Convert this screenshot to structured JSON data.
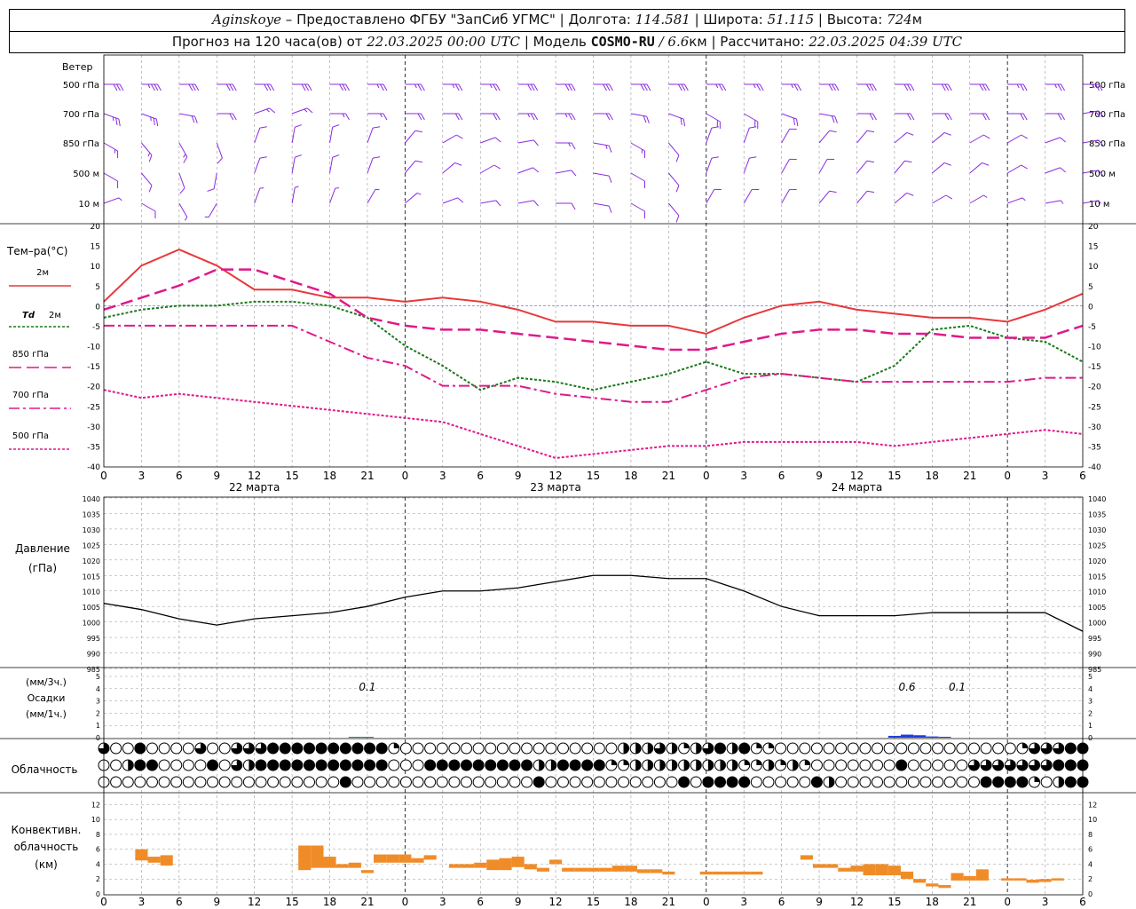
{
  "header": {
    "station": "Aginskoye",
    "dash": " – ",
    "provider": "Предоставлено ФГБУ \"ЗапСиб УГМС\"",
    "lon_label": "Долгота:",
    "lon": "114.581",
    "lat_label": "Широта:",
    "lat": "51.115",
    "alt_label": "Высота:",
    "alt": "724",
    "alt_unit": "м",
    "fc_label": "Прогноз на 120 часа(ов) от",
    "fc_time": "22.03.2025 00:00 UTC",
    "model_label": "Модель",
    "model": "COSMO-RU",
    "res": "/ 6.6",
    "res_unit": "км",
    "calc_label": "Рассчитано:",
    "calc_time": "22.03.2025 04:39 UTC"
  },
  "colors": {
    "t2m": "#e8383a",
    "td": "#1a7a1a",
    "t850": "#e0188a",
    "wind": "#8a2be2",
    "pressure": "#000000",
    "precip": "#1f3ee0",
    "precip_1h": "#2a9a2a",
    "conv": "#f08c28",
    "grid": "#999999"
  },
  "labels": {
    "wind": "Ветер",
    "wind_levels": [
      "500 гПа",
      "700 гПа",
      "850 гПа",
      "500 м",
      "10 м"
    ],
    "temp_title": "Тем–ра(°С)",
    "leg_2m": "2м",
    "leg_td": "Td",
    "leg_td_2m": "2м",
    "leg_850": "850 гПа",
    "leg_700": "700 гПа",
    "leg_500": "500 гПа",
    "pressure_title": "Давление",
    "pressure_unit": "(гПа)",
    "precip_unit3": "(мм/3ч.)",
    "precip_title": "Осадки",
    "precip_unit1": "(мм/1ч.)",
    "cloud_title": "Облачность",
    "conv_title1": "Конвективн.",
    "conv_title2": "облачность",
    "conv_unit": "(км)",
    "days": [
      "22 марта",
      "23 марта",
      "24 марта"
    ],
    "x_ticks": [
      "0",
      "3",
      "6",
      "9",
      "12",
      "15",
      "18",
      "21",
      "0",
      "3",
      "6",
      "9",
      "12",
      "15",
      "18",
      "21",
      "0",
      "3",
      "6",
      "9",
      "12",
      "15",
      "18",
      "21",
      "0",
      "3",
      "6"
    ]
  },
  "chart_data": [
    {
      "type": "line",
      "name": "temperature",
      "x": [
        0,
        3,
        6,
        9,
        12,
        15,
        18,
        21,
        24,
        27,
        30,
        33,
        36,
        39,
        42,
        45,
        48,
        51,
        54,
        57,
        60,
        63,
        66,
        69,
        72,
        75,
        78
      ],
      "ylim": [
        -40,
        20
      ],
      "yticks": [
        20,
        15,
        10,
        5,
        0,
        -5,
        -10,
        -15,
        -20,
        -25,
        -30,
        -35,
        -40
      ],
      "series": [
        {
          "name": "2м",
          "values": [
            1,
            10,
            14,
            10,
            4,
            4,
            2,
            2,
            1,
            2,
            1,
            -1,
            -4,
            -4,
            -5,
            -5,
            -7,
            -3,
            0,
            1,
            -1,
            -2,
            -3,
            -3,
            -4,
            -1,
            3
          ]
        },
        {
          "name": "Td 2м",
          "values": [
            -3,
            -1,
            0,
            0,
            1,
            1,
            0,
            -3,
            -10,
            -15,
            -21,
            -18,
            -19,
            -21,
            -19,
            -17,
            -14,
            -17,
            -17,
            -18,
            -19,
            -15,
            -6,
            -5,
            -8,
            -9,
            -14
          ]
        },
        {
          "name": "850 гПа",
          "values": [
            -1,
            2,
            5,
            9,
            9,
            6,
            3,
            -3,
            -5,
            -6,
            -6,
            -7,
            -8,
            -9,
            -10,
            -11,
            -11,
            -9,
            -7,
            -6,
            -6,
            -7,
            -7,
            -8,
            -8,
            -8,
            -5
          ]
        },
        {
          "name": "700 гПа",
          "values": [
            -5,
            -5,
            -5,
            -5,
            -5,
            -5,
            -9,
            -13,
            -15,
            -20,
            -20,
            -20,
            -22,
            -23,
            -24,
            -24,
            -21,
            -18,
            -17,
            -18,
            -19,
            -19,
            -19,
            -19,
            -19,
            -18,
            -18
          ]
        },
        {
          "name": "500 гПа",
          "values": [
            -21,
            -23,
            -22,
            -23,
            -24,
            -25,
            -26,
            -27,
            -28,
            -29,
            -32,
            -35,
            -38,
            -37,
            -36,
            -35,
            -35,
            -34,
            -34,
            -34,
            -34,
            -35,
            -34,
            -33,
            -32,
            -31,
            -32
          ]
        }
      ]
    },
    {
      "type": "line",
      "name": "pressure",
      "x": [
        0,
        3,
        6,
        9,
        12,
        15,
        18,
        21,
        24,
        27,
        30,
        33,
        36,
        39,
        42,
        45,
        48,
        51,
        54,
        57,
        60,
        63,
        66,
        69,
        72,
        75,
        78
      ],
      "ylim": [
        985,
        1040
      ],
      "yticks": [
        1040,
        1035,
        1030,
        1025,
        1020,
        1015,
        1010,
        1005,
        1000,
        995,
        990,
        985
      ],
      "series": [
        {
          "name": "Давление",
          "values": [
            1006,
            1004,
            1001,
            999,
            1001,
            1002,
            1003,
            1005,
            1008,
            1010,
            1010,
            1011,
            1013,
            1015,
            1015,
            1014,
            1014,
            1010,
            1005,
            1002,
            1002,
            1002,
            1003,
            1003,
            1003,
            1003,
            997
          ]
        }
      ]
    },
    {
      "type": "bar",
      "name": "precipitation",
      "ylim": [
        0,
        5
      ],
      "yticks": [
        5,
        4,
        3,
        2,
        1,
        0
      ],
      "totals": [
        {
          "x": 21,
          "label": "0.1"
        },
        {
          "x": 64,
          "label": "0.6"
        },
        {
          "x": 68,
          "label": "0.1"
        }
      ],
      "bars_1h": [
        {
          "x": 20,
          "value": 0.05,
          "color": "precip_1h"
        },
        {
          "x": 21,
          "value": 0.05,
          "color": "precip_1h"
        },
        {
          "x": 63,
          "value": 0.15
        },
        {
          "x": 64,
          "value": 0.25
        },
        {
          "x": 65,
          "value": 0.2
        },
        {
          "x": 66,
          "value": 0.1
        },
        {
          "x": 67,
          "value": 0.05
        }
      ]
    },
    {
      "type": "table",
      "name": "cloudiness",
      "rows": [
        "3004000030033344444444441000000000000000000222321234241100000000000000000000133344",
        "0024400004032444444444440004444444442244441122222222211212100000004000003333333444",
        "0000000000000000000040000000000000004000000000004044440000042000000000000444410244"
      ]
    },
    {
      "type": "bar",
      "name": "convective_cloud",
      "ylim": [
        0,
        13
      ],
      "yticks": [
        12,
        10,
        8,
        6,
        4,
        2,
        0
      ],
      "cells": [
        {
          "x": 3,
          "lo": 4.5,
          "hi": 6
        },
        {
          "x": 4,
          "lo": 4.2,
          "hi": 5
        },
        {
          "x": 5,
          "lo": 3.8,
          "hi": 5.2
        },
        {
          "x": 16,
          "lo": 3.2,
          "hi": 6.5
        },
        {
          "x": 17,
          "lo": 3.5,
          "hi": 6.5
        },
        {
          "x": 18,
          "lo": 3.5,
          "hi": 5
        },
        {
          "x": 19,
          "lo": 3.5,
          "hi": 4
        },
        {
          "x": 20,
          "lo": 3.5,
          "hi": 4.2
        },
        {
          "x": 21,
          "lo": 2.8,
          "hi": 3.2
        },
        {
          "x": 22,
          "lo": 4.2,
          "hi": 5.3
        },
        {
          "x": 23,
          "lo": 4.2,
          "hi": 5.3
        },
        {
          "x": 24,
          "lo": 4.2,
          "hi": 5.3
        },
        {
          "x": 25,
          "lo": 4.2,
          "hi": 4.8
        },
        {
          "x": 26,
          "lo": 4.6,
          "hi": 5.2
        },
        {
          "x": 28,
          "lo": 3.5,
          "hi": 4
        },
        {
          "x": 29,
          "lo": 3.5,
          "hi": 4
        },
        {
          "x": 30,
          "lo": 3.5,
          "hi": 4.2
        },
        {
          "x": 31,
          "lo": 3.2,
          "hi": 4.6
        },
        {
          "x": 32,
          "lo": 3.2,
          "hi": 4.8
        },
        {
          "x": 33,
          "lo": 3.6,
          "hi": 5
        },
        {
          "x": 34,
          "lo": 3.3,
          "hi": 4
        },
        {
          "x": 35,
          "lo": 3,
          "hi": 3.5
        },
        {
          "x": 36,
          "lo": 4,
          "hi": 4.6
        },
        {
          "x": 37,
          "lo": 3,
          "hi": 3.5
        },
        {
          "x": 38,
          "lo": 3,
          "hi": 3.5
        },
        {
          "x": 39,
          "lo": 3,
          "hi": 3.5
        },
        {
          "x": 40,
          "lo": 3,
          "hi": 3.5
        },
        {
          "x": 41,
          "lo": 3,
          "hi": 3.8
        },
        {
          "x": 42,
          "lo": 3,
          "hi": 3.8
        },
        {
          "x": 43,
          "lo": 2.8,
          "hi": 3.3
        },
        {
          "x": 44,
          "lo": 2.8,
          "hi": 3.3
        },
        {
          "x": 45,
          "lo": 2.6,
          "hi": 3
        },
        {
          "x": 48,
          "lo": 2.6,
          "hi": 3
        },
        {
          "x": 49,
          "lo": 2.6,
          "hi": 3
        },
        {
          "x": 50,
          "lo": 2.6,
          "hi": 3
        },
        {
          "x": 51,
          "lo": 2.6,
          "hi": 3
        },
        {
          "x": 52,
          "lo": 2.6,
          "hi": 3
        },
        {
          "x": 56,
          "lo": 4.6,
          "hi": 5.2
        },
        {
          "x": 57,
          "lo": 3.5,
          "hi": 4
        },
        {
          "x": 58,
          "lo": 3.5,
          "hi": 4
        },
        {
          "x": 59,
          "lo": 3,
          "hi": 3.5
        },
        {
          "x": 60,
          "lo": 3,
          "hi": 3.8
        },
        {
          "x": 61,
          "lo": 2.5,
          "hi": 4
        },
        {
          "x": 62,
          "lo": 2.5,
          "hi": 4
        },
        {
          "x": 63,
          "lo": 2.5,
          "hi": 3.8
        },
        {
          "x": 64,
          "lo": 2,
          "hi": 3
        },
        {
          "x": 65,
          "lo": 1.5,
          "hi": 2
        },
        {
          "x": 66,
          "lo": 1,
          "hi": 1.4
        },
        {
          "x": 67,
          "lo": 0.8,
          "hi": 1.2
        },
        {
          "x": 68,
          "lo": 1.8,
          "hi": 2.8
        },
        {
          "x": 69,
          "lo": 1.8,
          "hi": 2.4
        },
        {
          "x": 70,
          "lo": 1.8,
          "hi": 3.3
        },
        {
          "x": 72,
          "lo": 1.8,
          "hi": 2.1
        },
        {
          "x": 73,
          "lo": 1.8,
          "hi": 2.1
        },
        {
          "x": 74,
          "lo": 1.5,
          "hi": 1.9
        },
        {
          "x": 75,
          "lo": 1.6,
          "hi": 2
        },
        {
          "x": 76,
          "lo": 1.8,
          "hi": 2.1
        }
      ]
    },
    {
      "type": "table",
      "name": "wind_barbs",
      "levels": [
        "500 гПа",
        "700 гПа",
        "850 гПа",
        "500 м",
        "10 м"
      ],
      "x": [
        0,
        3,
        6,
        9,
        12,
        15,
        18,
        21,
        24,
        27,
        30,
        33,
        36,
        39,
        42,
        45,
        48,
        51,
        54,
        57,
        60,
        63,
        66,
        69,
        72,
        75,
        78
      ],
      "direction_deg": [
        [
          270,
          270,
          270,
          270,
          270,
          270,
          270,
          270,
          270,
          270,
          270,
          270,
          270,
          270,
          270,
          270,
          270,
          270,
          270,
          270,
          270,
          270,
          270,
          270,
          270,
          270,
          270
        ],
        [
          290,
          290,
          280,
          270,
          250,
          250,
          270,
          270,
          270,
          270,
          270,
          270,
          270,
          270,
          280,
          290,
          300,
          300,
          290,
          280,
          270,
          270,
          270,
          270,
          270,
          270,
          260
        ],
        [
          300,
          320,
          330,
          340,
          200,
          190,
          190,
          200,
          220,
          240,
          250,
          260,
          270,
          280,
          300,
          320,
          200,
          200,
          210,
          220,
          220,
          230,
          230,
          240,
          240,
          250,
          260
        ],
        [
          300,
          320,
          340,
          10,
          200,
          190,
          190,
          200,
          220,
          230,
          240,
          250,
          260,
          280,
          300,
          320,
          200,
          200,
          210,
          210,
          220,
          220,
          230,
          230,
          240,
          250,
          260
        ],
        [
          250,
          300,
          330,
          30,
          200,
          190,
          200,
          210,
          230,
          250,
          260,
          260,
          270,
          280,
          300,
          320,
          210,
          210,
          210,
          220,
          220,
          230,
          240,
          240,
          250,
          260,
          260
        ]
      ],
      "speed_kt": [
        [
          30,
          35,
          30,
          30,
          30,
          30,
          30,
          25,
          25,
          25,
          25,
          30,
          30,
          30,
          30,
          30,
          25,
          25,
          25,
          30,
          30,
          30,
          30,
          30,
          25,
          25,
          25
        ],
        [
          25,
          25,
          20,
          20,
          15,
          15,
          15,
          15,
          20,
          20,
          20,
          25,
          25,
          20,
          20,
          20,
          20,
          20,
          20,
          20,
          20,
          20,
          20,
          20,
          20,
          20,
          20
        ],
        [
          15,
          15,
          15,
          10,
          10,
          10,
          10,
          10,
          10,
          10,
          10,
          10,
          15,
          15,
          15,
          10,
          10,
          10,
          10,
          10,
          10,
          10,
          10,
          10,
          10,
          10,
          10
        ],
        [
          10,
          10,
          10,
          10,
          10,
          10,
          10,
          10,
          10,
          10,
          10,
          10,
          10,
          10,
          10,
          10,
          10,
          10,
          10,
          10,
          10,
          10,
          10,
          10,
          10,
          10,
          10
        ],
        [
          5,
          10,
          5,
          5,
          5,
          5,
          5,
          5,
          5,
          10,
          10,
          10,
          10,
          10,
          10,
          10,
          10,
          10,
          10,
          10,
          10,
          10,
          10,
          5,
          5,
          5,
          5
        ]
      ]
    }
  ]
}
